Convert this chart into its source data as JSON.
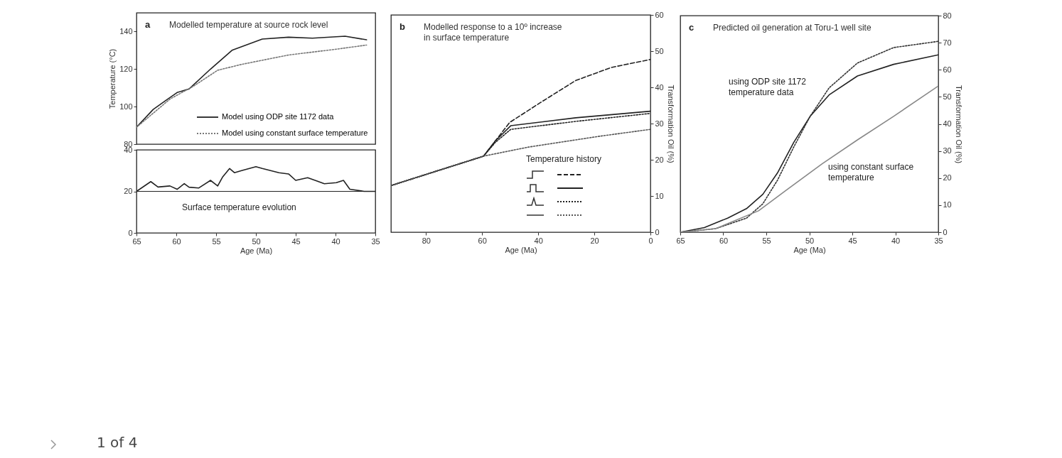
{
  "chart_data": [
    {
      "type": "line",
      "title": "Modelled temperature at source rock level",
      "annotations": [
        "a"
      ],
      "ylabel": "Temperature (°C)",
      "xlim": [
        65,
        35
      ],
      "ylim": [
        80,
        150
      ],
      "yticks": [
        80,
        100,
        120,
        140
      ],
      "tick_labels": "y",
      "legend": "bottom right",
      "series": [
        {
          "name": "Model using ODP site 1172 data",
          "color": "#222222",
          "line_style": "solid",
          "x": [
            65,
            62.9,
            61.4,
            59.9,
            58.4,
            55.7,
            53,
            49.2,
            45.9,
            42.9,
            38.8,
            36.1
          ],
          "values": [
            89,
            98.5,
            103,
            107.5,
            109.4,
            120,
            130,
            136,
            137,
            136.5,
            137.5,
            135.6
          ]
        },
        {
          "name": "Model using constant surface temperature",
          "color": "#777777",
          "line_style": "dotted",
          "x": [
            65,
            60.8,
            57.8,
            54.8,
            51.8,
            45.9,
            39.9,
            36.1
          ],
          "values": [
            89,
            104,
            111,
            119.4,
            122.5,
            127.5,
            130.6,
            132.8
          ]
        }
      ]
    },
    {
      "type": "line",
      "xlabel": "Age (Ma)",
      "xlim": [
        65,
        35
      ],
      "xticks": [
        65,
        60,
        55,
        50,
        45,
        40,
        35
      ],
      "ylim": [
        0,
        40
      ],
      "yticks": [
        0,
        20,
        40
      ],
      "ref_lines": [
        {
          "axis": "y",
          "value": 20
        }
      ],
      "annotations": [
        "Surface temperature evolution"
      ],
      "series": [
        {
          "color": "#222222",
          "line_style": "solid",
          "x": [
            65,
            63.2,
            62.3,
            60.8,
            59.9,
            59,
            58.4,
            57.2,
            55.7,
            54.8,
            54.2,
            53.3,
            52.7,
            51.8,
            50,
            49.2,
            47.1,
            45.9,
            45,
            43.5,
            41.4,
            39.9,
            39,
            38.2,
            36.4,
            35
          ],
          "values": [
            20,
            24.7,
            22.1,
            22.6,
            21,
            23.7,
            22,
            21.6,
            25.3,
            22.6,
            26.8,
            31,
            29,
            30,
            31.9,
            31,
            29,
            28.4,
            25.3,
            26.6,
            23.7,
            24.2,
            25.3,
            21,
            20,
            20
          ]
        }
      ]
    },
    {
      "type": "line",
      "title": "Modelled response to a 10º increase\nin surface temperature",
      "annotations": [
        "b"
      ],
      "xlabel": "Age (Ma)",
      "y2label": "Transformation Oil (%)",
      "xlim": [
        92.5,
        0
      ],
      "xticks": [
        80,
        60,
        40,
        20,
        0
      ],
      "y2lim": [
        0,
        60
      ],
      "y2ticks": [
        0,
        10,
        20,
        30,
        40,
        50,
        60
      ],
      "legend": "bottom right",
      "legend_title": "Temperature history",
      "series": [
        {
          "color": "#222222",
          "line_style": "dashed",
          "axis": "y2",
          "x": [
            92.4,
            59.5,
            55.3,
            50.2,
            39.2,
            26.6,
            13.9,
            0
          ],
          "values": [
            12.9,
            21,
            25.2,
            30.3,
            35.8,
            41.9,
            45.5,
            47.7
          ]
        },
        {
          "color": "#222222",
          "line_style": "solid",
          "axis": "y2",
          "x": [
            92.4,
            59.5,
            55.3,
            49.8,
            26.6,
            0
          ],
          "values": [
            12.9,
            21,
            25.2,
            29.4,
            31.6,
            33.4
          ]
        },
        {
          "color": "#222222",
          "line_style": "dotted",
          "axis": "y2",
          "x": [
            92.4,
            59.5,
            55.3,
            49.8,
            26.6,
            0
          ],
          "values": [
            12.9,
            21,
            24.8,
            28.4,
            30.6,
            32.8
          ]
        },
        {
          "color": "#555555",
          "line_style": "dotted",
          "axis": "y2",
          "x": [
            92.4,
            59.5,
            43.5,
            18.1,
            0
          ],
          "values": [
            12.9,
            21,
            23.5,
            26.5,
            28.4
          ]
        }
      ]
    },
    {
      "type": "line",
      "title": "Predicted oil generation at Toru-1 well site",
      "annotations": [
        "c",
        "using ODP site 1172\ntemperature data",
        "using constant surface\ntemperature",
        "1 of 4"
      ],
      "xlabel": "Age (Ma)",
      "y2label": "Transformation Oil (%)",
      "xlim": [
        65,
        35
      ],
      "xticks": [
        65,
        60,
        55,
        50,
        45,
        40,
        35
      ],
      "y2lim": [
        0,
        80
      ],
      "y2ticks": [
        0,
        10,
        20,
        30,
        40,
        50,
        60,
        70,
        80
      ],
      "series": [
        {
          "color": "#222222",
          "line_style": "solid",
          "axis": "y2",
          "x": [
            65,
            62.2,
            59.5,
            57.3,
            55.4,
            53.7,
            51.8,
            49.9,
            47.7,
            44.4,
            40.2,
            35
          ],
          "values": [
            0,
            1.7,
            5.2,
            8.7,
            14,
            21.9,
            33.2,
            42.8,
            50.7,
            57.7,
            62,
            65.5
          ]
        },
        {
          "color": "#333333",
          "line_style": "dotted",
          "axis": "y2",
          "x": [
            65,
            60.9,
            57.3,
            55.4,
            53.7,
            51.8,
            49.9,
            47.7,
            44.4,
            40.2,
            35
          ],
          "values": [
            0,
            1.3,
            5.2,
            10.5,
            19.2,
            31.5,
            42.8,
            53.3,
            62.5,
            68.2,
            70.5
          ]
        },
        {
          "color": "#888888",
          "line_style": "solid",
          "axis": "y2",
          "x": [
            65,
            60.9,
            55.9,
            52.6,
            48.5,
            44.4,
            40.2,
            35
          ],
          "values": [
            0,
            1.3,
            7.9,
            15.7,
            25.3,
            34.1,
            42.8,
            54
          ]
        }
      ]
    }
  ]
}
